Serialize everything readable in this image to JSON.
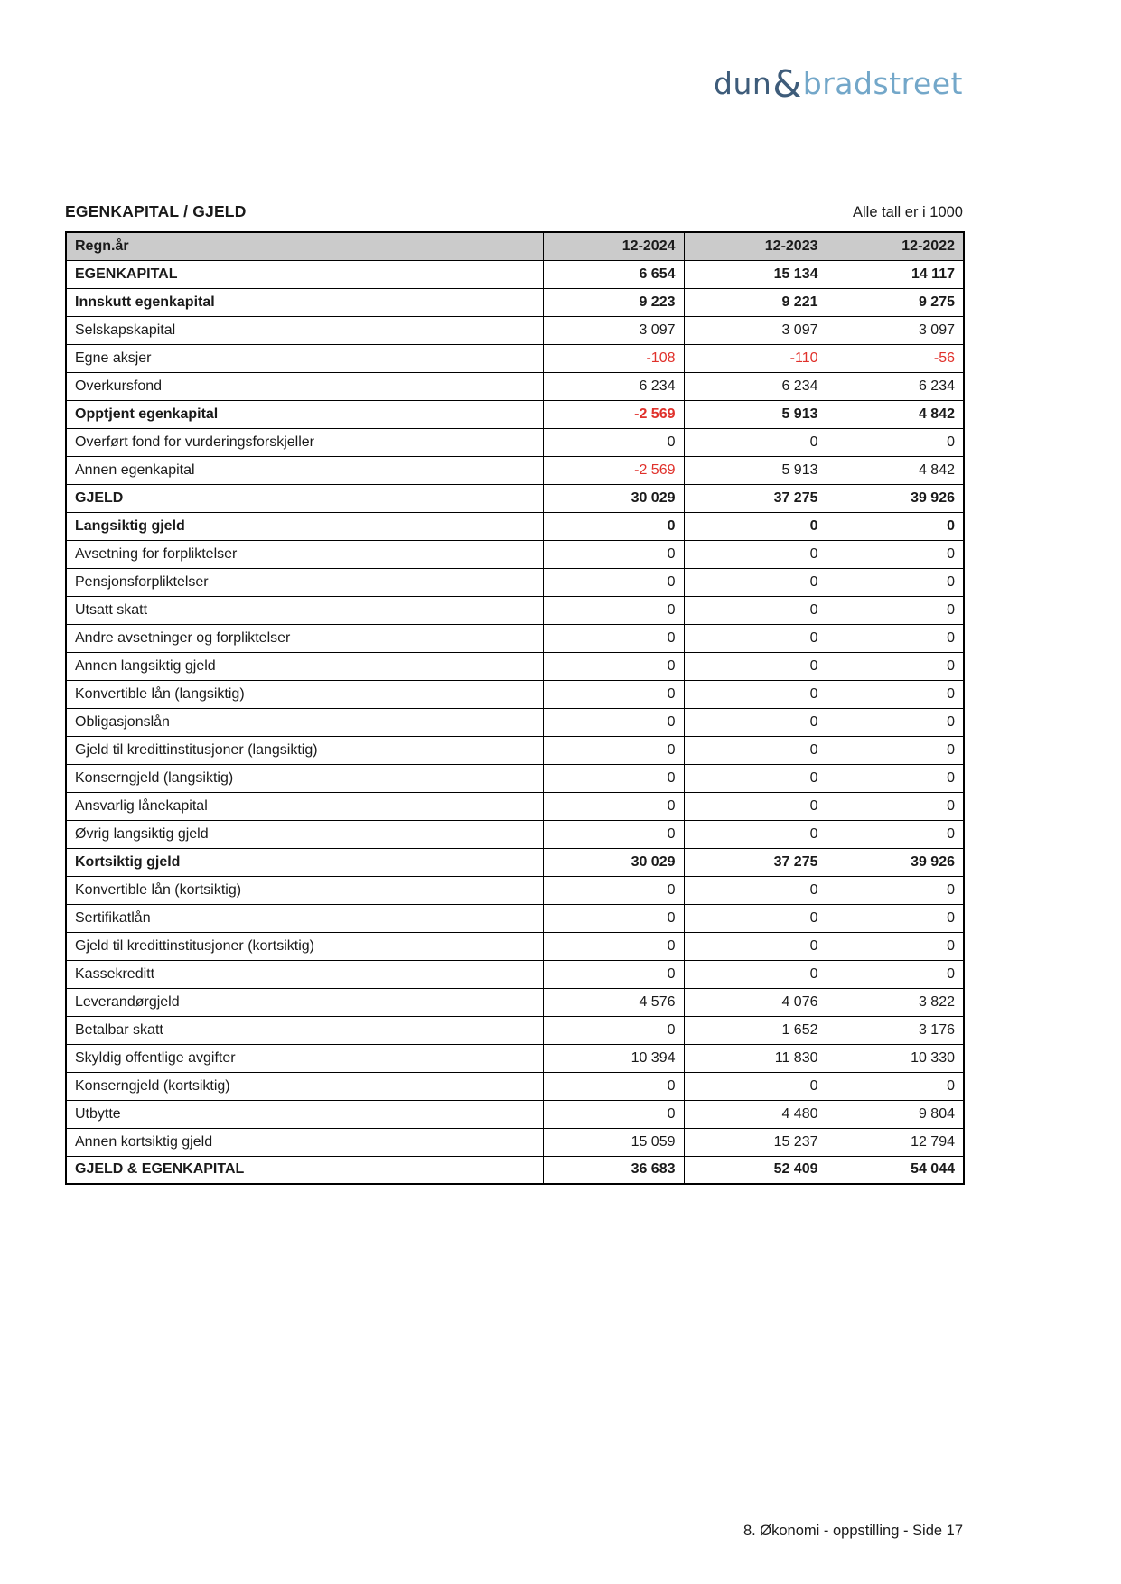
{
  "logo": {
    "dun": "dun",
    "amp": "&",
    "bradstreet": "bradstreet"
  },
  "header": {
    "title": "EGENKAPITAL / GJELD",
    "units_note": "Alle tall er i 1000"
  },
  "table": {
    "header": {
      "label": "Regn.år",
      "cols": [
        "12-2024",
        "12-2023",
        "12-2022"
      ]
    },
    "rows": [
      {
        "label": "EGENKAPITAL",
        "bold": true,
        "values": [
          "6 654",
          "15 134",
          "14 117"
        ]
      },
      {
        "label": "Innskutt egenkapital",
        "bold": true,
        "values": [
          "9 223",
          "9 221",
          "9 275"
        ]
      },
      {
        "label": "Selskapskapital",
        "bold": false,
        "values": [
          "3 097",
          "3 097",
          "3 097"
        ]
      },
      {
        "label": "Egne aksjer",
        "bold": false,
        "values": [
          "-108",
          "-110",
          "-56"
        ]
      },
      {
        "label": "Overkursfond",
        "bold": false,
        "values": [
          "6 234",
          "6 234",
          "6 234"
        ]
      },
      {
        "label": "Opptjent egenkapital",
        "bold": true,
        "values": [
          "-2 569",
          "5 913",
          "4 842"
        ]
      },
      {
        "label": "Overført fond for vurderingsforskjeller",
        "bold": false,
        "values": [
          "0",
          "0",
          "0"
        ]
      },
      {
        "label": "Annen egenkapital",
        "bold": false,
        "values": [
          "-2 569",
          "5 913",
          "4 842"
        ]
      },
      {
        "label": "GJELD",
        "bold": true,
        "values": [
          "30 029",
          "37 275",
          "39 926"
        ]
      },
      {
        "label": "Langsiktig gjeld",
        "bold": true,
        "values": [
          "0",
          "0",
          "0"
        ]
      },
      {
        "label": "Avsetning for forpliktelser",
        "bold": false,
        "values": [
          "0",
          "0",
          "0"
        ]
      },
      {
        "label": "Pensjonsforpliktelser",
        "bold": false,
        "values": [
          "0",
          "0",
          "0"
        ]
      },
      {
        "label": "Utsatt skatt",
        "bold": false,
        "values": [
          "0",
          "0",
          "0"
        ]
      },
      {
        "label": "Andre avsetninger og forpliktelser",
        "bold": false,
        "values": [
          "0",
          "0",
          "0"
        ]
      },
      {
        "label": "Annen langsiktig gjeld",
        "bold": false,
        "values": [
          "0",
          "0",
          "0"
        ]
      },
      {
        "label": "Konvertible lån (langsiktig)",
        "bold": false,
        "values": [
          "0",
          "0",
          "0"
        ]
      },
      {
        "label": "Obligasjonslån",
        "bold": false,
        "values": [
          "0",
          "0",
          "0"
        ]
      },
      {
        "label": "Gjeld til kredittinstitusjoner (langsiktig)",
        "bold": false,
        "values": [
          "0",
          "0",
          "0"
        ]
      },
      {
        "label": "Konserngjeld (langsiktig)",
        "bold": false,
        "values": [
          "0",
          "0",
          "0"
        ]
      },
      {
        "label": "Ansvarlig lånekapital",
        "bold": false,
        "values": [
          "0",
          "0",
          "0"
        ]
      },
      {
        "label": "Øvrig langsiktig gjeld",
        "bold": false,
        "values": [
          "0",
          "0",
          "0"
        ]
      },
      {
        "label": "Kortsiktig gjeld",
        "bold": true,
        "values": [
          "30 029",
          "37 275",
          "39 926"
        ]
      },
      {
        "label": "Konvertible lån (kortsiktig)",
        "bold": false,
        "values": [
          "0",
          "0",
          "0"
        ]
      },
      {
        "label": "Sertifikatlån",
        "bold": false,
        "values": [
          "0",
          "0",
          "0"
        ]
      },
      {
        "label": "Gjeld til kredittinstitusjoner (kortsiktig)",
        "bold": false,
        "values": [
          "0",
          "0",
          "0"
        ]
      },
      {
        "label": "Kassekreditt",
        "bold": false,
        "values": [
          "0",
          "0",
          "0"
        ]
      },
      {
        "label": "Leverandørgjeld",
        "bold": false,
        "values": [
          "4 576",
          "4 076",
          "3 822"
        ]
      },
      {
        "label": "Betalbar skatt",
        "bold": false,
        "values": [
          "0",
          "1 652",
          "3 176"
        ]
      },
      {
        "label": "Skyldig offentlige avgifter",
        "bold": false,
        "values": [
          "10 394",
          "11 830",
          "10 330"
        ]
      },
      {
        "label": "Konserngjeld (kortsiktig)",
        "bold": false,
        "values": [
          "0",
          "0",
          "0"
        ]
      },
      {
        "label": "Utbytte",
        "bold": false,
        "values": [
          "0",
          "4 480",
          "9 804"
        ]
      },
      {
        "label": "Annen kortsiktig gjeld",
        "bold": false,
        "values": [
          "15 059",
          "15 237",
          "12 794"
        ]
      },
      {
        "label": "GJELD & EGENKAPITAL",
        "bold": true,
        "values": [
          "36 683",
          "52 409",
          "54 044"
        ]
      }
    ]
  },
  "colors": {
    "text": "#1a1a1a",
    "border": "#000000",
    "header_bg": "#cbcbcb",
    "negative_value": "#e0312b",
    "logo_dark": "#3e5c7a",
    "logo_light": "#73a7c9"
  },
  "footer": {
    "text": "8. Økonomi - oppstilling - Side 17"
  }
}
